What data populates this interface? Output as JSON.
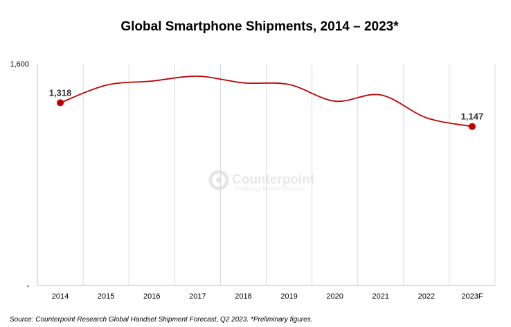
{
  "chart_data": {
    "type": "line",
    "title": "Global Smartphone Shipments, 2014 – 2023*",
    "categories": [
      "2014",
      "2015",
      "2016",
      "2017",
      "2018",
      "2019",
      "2020",
      "2021",
      "2022",
      "2023F"
    ],
    "series": [
      {
        "values": [
          1318,
          1445,
          1475,
          1510,
          1462,
          1450,
          1330,
          1375,
          1210,
          1147
        ],
        "color": "#c00000",
        "data_labels": {
          "2014": "1,318",
          "2023F": "1,147"
        }
      }
    ],
    "y_tick_labels": [
      "-",
      "1,600"
    ],
    "ylim": [
      0,
      1600
    ],
    "grid": "vertical",
    "legend": "none"
  },
  "source": "Source:  Counterpoint Research Global Handset Shipment Forecast, Q2 2023. *Preliminary figures.",
  "watermark": {
    "brand": "Counterpoint",
    "tagline": "Technology Market Research",
    "icon": "counterpoint-logo-icon"
  }
}
